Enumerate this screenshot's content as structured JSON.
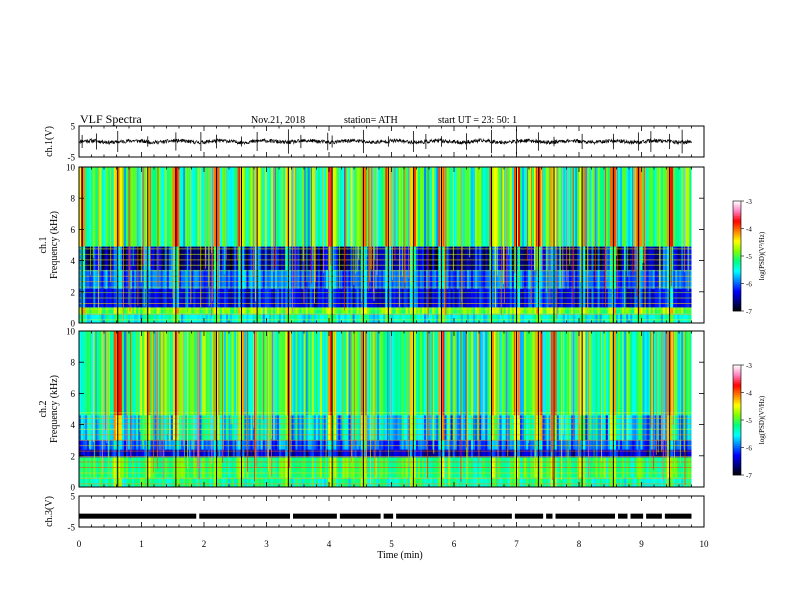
{
  "header": {
    "title": "VLF  Spectra",
    "date": "Nov.21, 2018",
    "station": "station= ATH",
    "start": "start  UT  =    23: 50: 1"
  },
  "chart_data": [
    {
      "type": "line",
      "id": "ch1-waveform",
      "ylabel": "ch.1(V)",
      "ylim": [
        -5,
        5
      ],
      "yticks": [
        "5",
        "-5"
      ],
      "xlim": [
        0,
        10
      ],
      "data_end_min": 9.8,
      "baseline": 0,
      "noise_amplitude": 0.6,
      "spike_times": [
        0.05,
        0.28,
        0.62,
        1.1,
        1.55,
        1.95,
        2.2,
        2.6,
        2.85,
        3.35,
        3.55,
        3.98,
        4.05,
        4.55,
        4.95,
        5.35,
        5.55,
        5.8,
        6.2,
        6.6,
        7.0,
        7.35,
        7.6,
        8.05,
        8.55,
        8.95,
        9.15,
        9.45,
        9.65
      ]
    },
    {
      "type": "heatmap",
      "id": "ch1-spectrogram",
      "series_label": "ch.1",
      "ylabel": "Frequency  (kHz)",
      "ylim": [
        0,
        10
      ],
      "yticks": [
        "0",
        "2",
        "4",
        "6",
        "8",
        "10"
      ],
      "xlim": [
        0,
        10
      ],
      "data_end_min": 9.8,
      "band_edges_khz": [
        0,
        0.6,
        1.0,
        2.2,
        3.4,
        4.9,
        10
      ],
      "band_levels": [
        -5.5,
        -4.9,
        -6.3,
        -6.0,
        -6.5,
        -5.2
      ],
      "burst_times": [
        0.05,
        0.62,
        1.1,
        1.55,
        2.2,
        2.6,
        2.85,
        3.35,
        4.05,
        4.55,
        4.95,
        5.35,
        5.8,
        6.6,
        7.0,
        7.35,
        7.6,
        8.05,
        8.55,
        8.95,
        9.45
      ],
      "colorbar": {
        "label": "log(PSD)(V²/Hz)",
        "range": [
          -7,
          -3
        ],
        "ticks": [
          "-3",
          "-4",
          "-5",
          "-6",
          "-7"
        ]
      }
    },
    {
      "type": "heatmap",
      "id": "ch2-spectrogram",
      "series_label": "ch.2",
      "ylabel": "Frequency  (kHz)",
      "ylim": [
        0,
        10
      ],
      "yticks": [
        "0",
        "2",
        "4",
        "6",
        "8",
        "10"
      ],
      "xlim": [
        0,
        10
      ],
      "data_end_min": 9.8,
      "band_edges_khz": [
        0,
        0.6,
        1.9,
        2.4,
        3.0,
        4.6,
        10
      ],
      "band_levels": [
        -5.3,
        -5.1,
        -6.4,
        -6.0,
        -5.6,
        -5.2
      ],
      "burst_times": [
        0.62,
        1.1,
        1.55,
        2.2,
        2.6,
        3.35,
        4.05,
        4.55,
        5.35,
        5.8,
        6.6,
        7.0,
        7.35,
        7.6,
        8.05,
        8.55,
        9.45
      ],
      "colorbar": {
        "label": "log(PSD)(V²/Hz)",
        "range": [
          -7,
          -3
        ],
        "ticks": [
          "-3",
          "-4",
          "-5",
          "-6",
          "-7"
        ]
      }
    },
    {
      "type": "line",
      "id": "ch3-trace",
      "ylabel": "ch.3(V)",
      "ylim": [
        -5,
        5
      ],
      "yticks": [
        "5",
        "-5"
      ],
      "xlim": [
        0,
        10
      ],
      "data_end_min": 9.8,
      "level": -1.5,
      "gap_times": [
        1.9,
        3.4,
        4.15,
        4.85,
        5.05,
        6.95,
        7.45,
        7.6,
        8.6,
        8.8,
        9.05,
        9.35
      ]
    }
  ],
  "time_axis": {
    "label": "Time  (min)",
    "ticks": [
      "0",
      "1",
      "2",
      "3",
      "4",
      "5",
      "6",
      "7",
      "8",
      "9",
      "10"
    ]
  },
  "colors": {
    "trace": "#000000",
    "frame": "#000000",
    "colormap": [
      "#000000",
      "#00007f",
      "#0000ff",
      "#0080ff",
      "#00ffff",
      "#00ff80",
      "#80ff00",
      "#ffff00",
      "#ff8000",
      "#ff0000",
      "#ff80c0",
      "#ffffff"
    ]
  }
}
